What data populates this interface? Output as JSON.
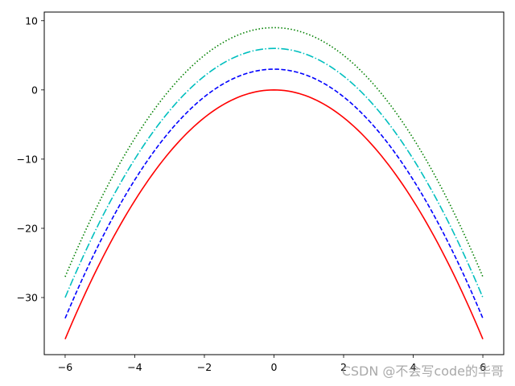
{
  "chart_data": {
    "type": "line",
    "title": "",
    "xlabel": "",
    "ylabel": "",
    "xlim": [
      -6.6,
      6.6
    ],
    "ylim": [
      -38.25,
      11.25
    ],
    "xticks": [
      -6,
      -4,
      -2,
      0,
      2,
      4,
      6
    ],
    "yticks": [
      10,
      0,
      -10,
      -20,
      -30
    ],
    "xtick_labels": [
      "−6",
      "−4",
      "−2",
      "0",
      "2",
      "4",
      "6"
    ],
    "ytick_labels": [
      "10",
      "0",
      "−10",
      "−20",
      "−30"
    ],
    "grid": false,
    "legend": "none",
    "x": [
      -6,
      -5,
      -4,
      -3,
      -2,
      -1,
      0,
      1,
      2,
      3,
      4,
      5,
      6
    ],
    "series": [
      {
        "color": "#ff0000",
        "style": "solid",
        "values": [
          -36,
          -25,
          -16,
          -9,
          -4,
          -1,
          0,
          -1,
          -4,
          -9,
          -16,
          -25,
          -36
        ]
      },
      {
        "color": "#0000ff",
        "style": "dashed",
        "values": [
          -33,
          -22,
          -13,
          -6,
          -1,
          2,
          3,
          2,
          -1,
          -6,
          -13,
          -22,
          -33
        ]
      },
      {
        "color": "#00bfbf",
        "style": "dashdot",
        "values": [
          -30,
          -19,
          -10,
          -3,
          2,
          5,
          6,
          5,
          2,
          -3,
          -10,
          -19,
          -30
        ]
      },
      {
        "color": "#008000",
        "style": "dotted",
        "values": [
          -27,
          -16,
          -7,
          0,
          5,
          8,
          9,
          8,
          5,
          0,
          -7,
          -16,
          -27
        ]
      }
    ]
  },
  "watermark": "CSDN @不会写code的华哥"
}
